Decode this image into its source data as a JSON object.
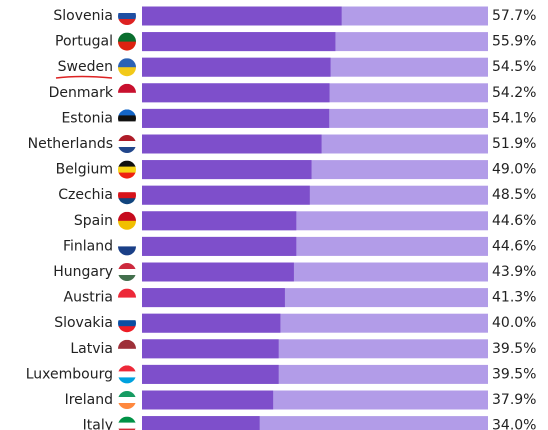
{
  "chart_data": {
    "type": "bar",
    "orientation": "horizontal",
    "categories": [
      "Slovenia",
      "Portugal",
      "Sweden",
      "Denmark",
      "Estonia",
      "Netherlands",
      "Belgium",
      "Czechia",
      "Spain",
      "Finland",
      "Hungary",
      "Austria",
      "Slovakia",
      "Latvia",
      "Luxembourg",
      "Ireland",
      "Italy"
    ],
    "values": [
      57.7,
      55.9,
      54.5,
      54.2,
      54.1,
      51.9,
      49.0,
      48.5,
      44.6,
      44.6,
      43.9,
      41.3,
      40.0,
      39.5,
      39.5,
      37.9,
      34.0
    ],
    "value_labels": [
      "57.7%",
      "55.9%",
      "54.5%",
      "54.2%",
      "54.1%",
      "51.9%",
      "49.0%",
      "48.5%",
      "44.6%",
      "44.6%",
      "43.9%",
      "41.3%",
      "40.0%",
      "39.5%",
      "39.5%",
      "37.9%",
      "34.0%"
    ],
    "xlim": [
      0,
      100
    ],
    "color": "#7e4fcb",
    "track_color": "#b29ce8"
  }
}
